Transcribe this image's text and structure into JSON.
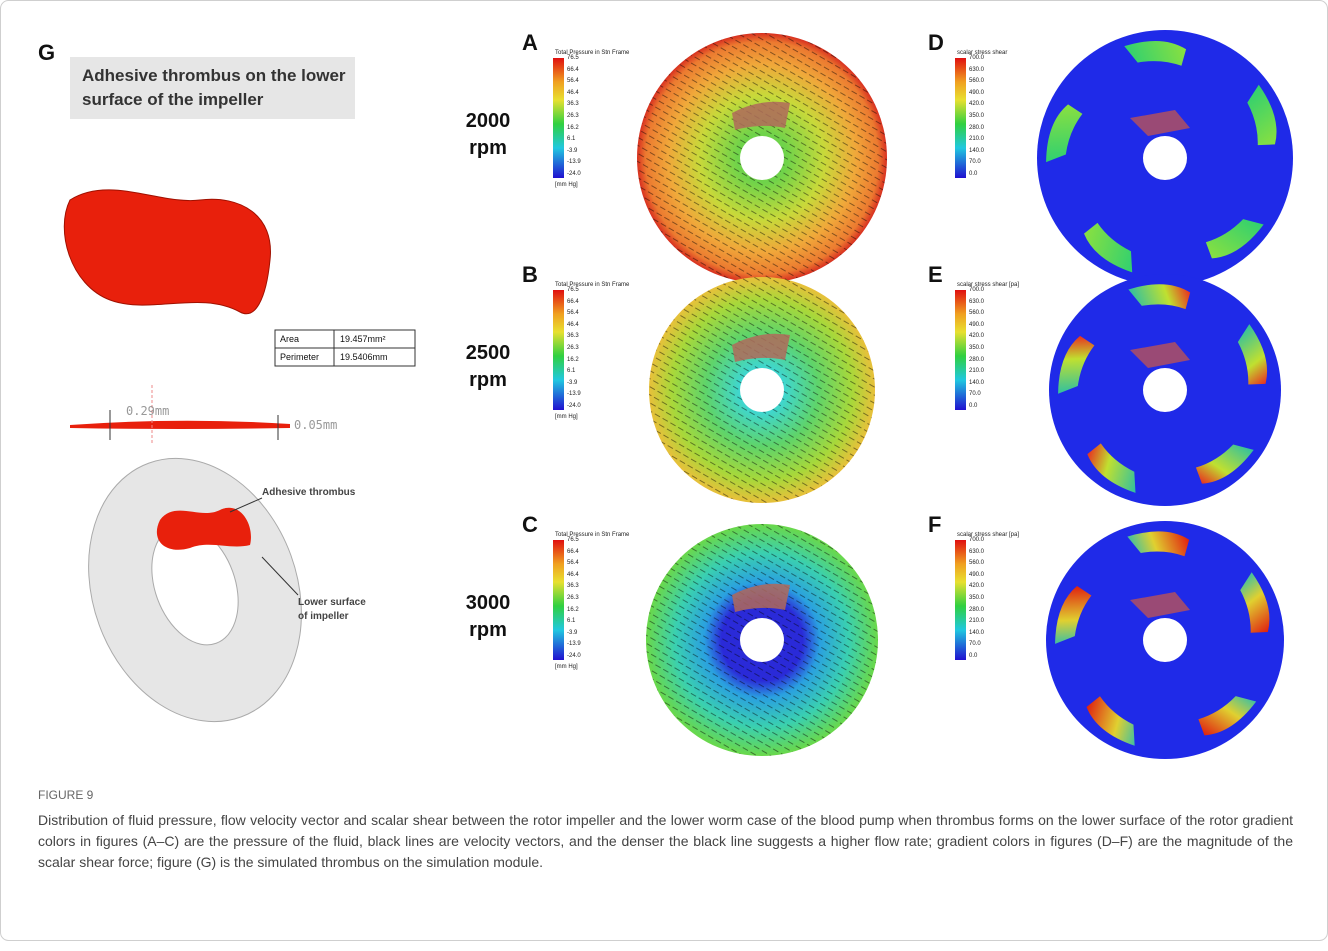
{
  "figure_label": "FIGURE 9",
  "caption": "Distribution of fluid pressure, flow velocity vector and scalar shear between the rotor impeller and the lower worm case of the blood pump when thrombus forms on the lower surface of the rotor gradient colors in figures (A–C) are the pressure of the fluid, black lines are velocity vectors, and the denser the black line suggests a higher flow rate; gradient colors in figures (D–F) are the magnitude of the scalar shear force; figure (G) is the simulated thrombus on the simulation module.",
  "panel_g": {
    "label": "G",
    "heading": "Adhesive thrombus on the lower surface of the impeller",
    "table": {
      "rows": [
        [
          "Area",
          "19.457mm²"
        ],
        [
          "Perimeter",
          "19.5406mm"
        ]
      ]
    },
    "thickness_labels": [
      "0.29mm",
      "0.05mm"
    ],
    "annotations": [
      "Adhesive thrombus",
      "Lower surface of impeller"
    ]
  },
  "rows": [
    {
      "speed": "2000 rpm",
      "pressure_panel": {
        "label": "A",
        "legend_title": "Total Pressure in Stn Frame",
        "unit": "[mm Hg]"
      },
      "shear_panel": {
        "label": "D",
        "legend_title": "scalar stress shear"
      }
    },
    {
      "speed": "2500 rpm",
      "pressure_panel": {
        "label": "B",
        "legend_title": "Total Pressure in Stn Frame",
        "unit": "[mm Hg]"
      },
      "shear_panel": {
        "label": "E",
        "legend_title": "scalar stress shear [pa]"
      }
    },
    {
      "speed": "3000 rpm",
      "pressure_panel": {
        "label": "C",
        "legend_title": "Total Pressure in Stn Frame",
        "unit": "[mm Hg]"
      },
      "shear_panel": {
        "label": "F",
        "legend_title": "scalar stress shear [pa]"
      }
    }
  ],
  "pressure_scale": [
    "76.5",
    "66.4",
    "56.4",
    "46.4",
    "36.3",
    "26.3",
    "16.2",
    "6.1",
    "-3.9",
    "-13.9",
    "-24.0"
  ],
  "shear_scale": [
    "700.0",
    "630.0",
    "560.0",
    "490.0",
    "420.0",
    "350.0",
    "280.0",
    "210.0",
    "140.0",
    "70.0",
    "0.0"
  ]
}
